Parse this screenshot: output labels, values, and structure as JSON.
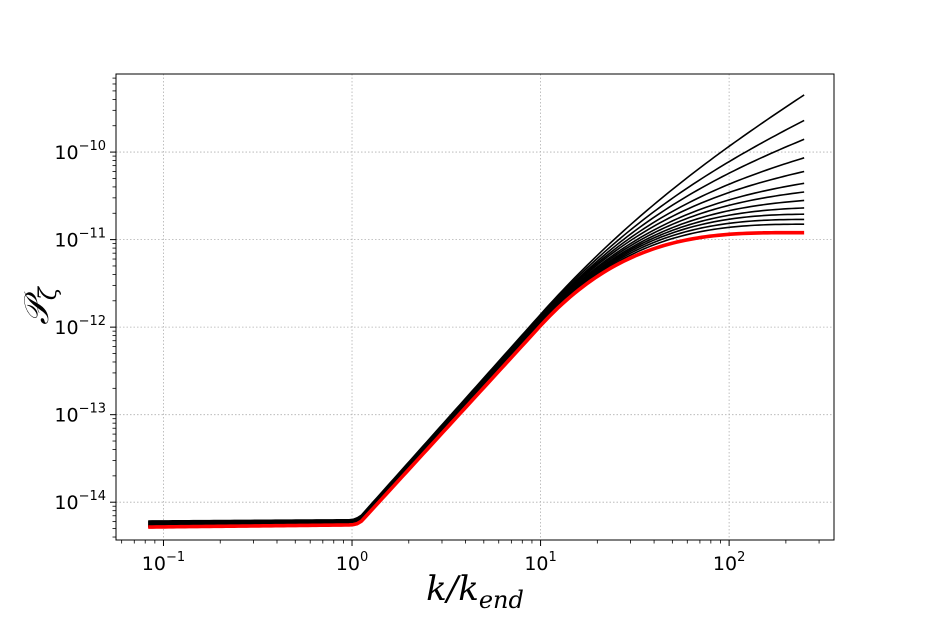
{
  "chart_data": {
    "type": "line",
    "title": "",
    "xlabel": "k/k",
    "xlabel_sub": "end",
    "ylabel": "𝒫",
    "ylabel_sub": "ζ",
    "xscale": "log",
    "yscale": "log",
    "xlim": [
      0.056,
      360
    ],
    "ylim": [
      3.7e-15,
      7.8e-10
    ],
    "grid": true,
    "x_ticks": [
      {
        "value": 0.1,
        "base": "10",
        "exp": "−1"
      },
      {
        "value": 1,
        "base": "10",
        "exp": "0"
      },
      {
        "value": 10,
        "base": "10",
        "exp": "1"
      },
      {
        "value": 100,
        "base": "10",
        "exp": "2"
      }
    ],
    "y_ticks": [
      {
        "value": 1e-14,
        "base": "10",
        "exp": "−14"
      },
      {
        "value": 1e-13,
        "base": "10",
        "exp": "−13"
      },
      {
        "value": 1e-12,
        "base": "10",
        "exp": "−12"
      },
      {
        "value": 1e-11,
        "base": "10",
        "exp": "−11"
      },
      {
        "value": 1e-10,
        "base": "10",
        "exp": "−10"
      }
    ],
    "line_colors": {
      "family": "#000000",
      "highlight": "#ff0000"
    },
    "series": [
      {
        "color": "#000000",
        "x": [
          0.083,
          1.0,
          1.1,
          10,
          250
        ],
        "y": [
          6.1e-15,
          6.3e-15,
          6.8e-15,
          1.4e-12,
          4.5e-10
        ]
      },
      {
        "color": "#000000",
        "x": [
          0.083,
          1.0,
          1.1,
          10,
          250
        ],
        "y": [
          6e-15,
          6.2e-15,
          6.7e-15,
          1.35e-12,
          2.3e-10
        ]
      },
      {
        "color": "#000000",
        "x": [
          0.083,
          1.0,
          1.1,
          10,
          250
        ],
        "y": [
          5.9e-15,
          6.1e-15,
          6.6e-15,
          1.3e-12,
          1.4e-10
        ]
      },
      {
        "color": "#000000",
        "x": [
          0.083,
          1.0,
          1.1,
          10,
          250
        ],
        "y": [
          5.8e-15,
          6e-15,
          6.5e-15,
          1.27e-12,
          8.6e-11
        ]
      },
      {
        "color": "#000000",
        "x": [
          0.083,
          1.0,
          1.1,
          10,
          250
        ],
        "y": [
          5.7e-15,
          5.9e-15,
          6.4e-15,
          1.24e-12,
          6e-11
        ]
      },
      {
        "color": "#000000",
        "x": [
          0.083,
          1.0,
          1.1,
          10,
          250
        ],
        "y": [
          5.6e-15,
          5.8e-15,
          6.3e-15,
          1.2e-12,
          4.4e-11
        ]
      },
      {
        "color": "#000000",
        "x": [
          0.083,
          1.0,
          1.1,
          10,
          250
        ],
        "y": [
          5.5e-15,
          5.8e-15,
          6.2e-15,
          1.17e-12,
          3.5e-11
        ]
      },
      {
        "color": "#000000",
        "x": [
          0.083,
          1.0,
          1.1,
          10,
          250
        ],
        "y": [
          5.4e-15,
          5.7e-15,
          6.1e-15,
          1.14e-12,
          2.8e-11
        ]
      },
      {
        "color": "#000000",
        "x": [
          0.083,
          1.0,
          1.1,
          10,
          250
        ],
        "y": [
          5.4e-15,
          5.7e-15,
          6e-15,
          1.12e-12,
          2.3e-11
        ]
      },
      {
        "color": "#000000",
        "x": [
          0.083,
          1.0,
          1.1,
          10,
          250
        ],
        "y": [
          5.3e-15,
          5.6e-15,
          6e-15,
          1.1e-12,
          1.95e-11
        ]
      },
      {
        "color": "#000000",
        "x": [
          0.083,
          1.0,
          1.1,
          10,
          250
        ],
        "y": [
          5.3e-15,
          5.6e-15,
          5.9e-15,
          1.08e-12,
          1.7e-11
        ]
      },
      {
        "color": "#000000",
        "x": [
          0.083,
          1.0,
          1.1,
          10,
          250
        ],
        "y": [
          5.2e-15,
          5.5e-15,
          5.9e-15,
          1.06e-12,
          1.5e-11
        ]
      },
      {
        "color": "#ff0000",
        "x": [
          0.083,
          1.0,
          1.1,
          10,
          250
        ],
        "y": [
          5.2e-15,
          5.5e-15,
          5.8e-15,
          1.04e-12,
          1.2e-11
        ]
      }
    ]
  }
}
